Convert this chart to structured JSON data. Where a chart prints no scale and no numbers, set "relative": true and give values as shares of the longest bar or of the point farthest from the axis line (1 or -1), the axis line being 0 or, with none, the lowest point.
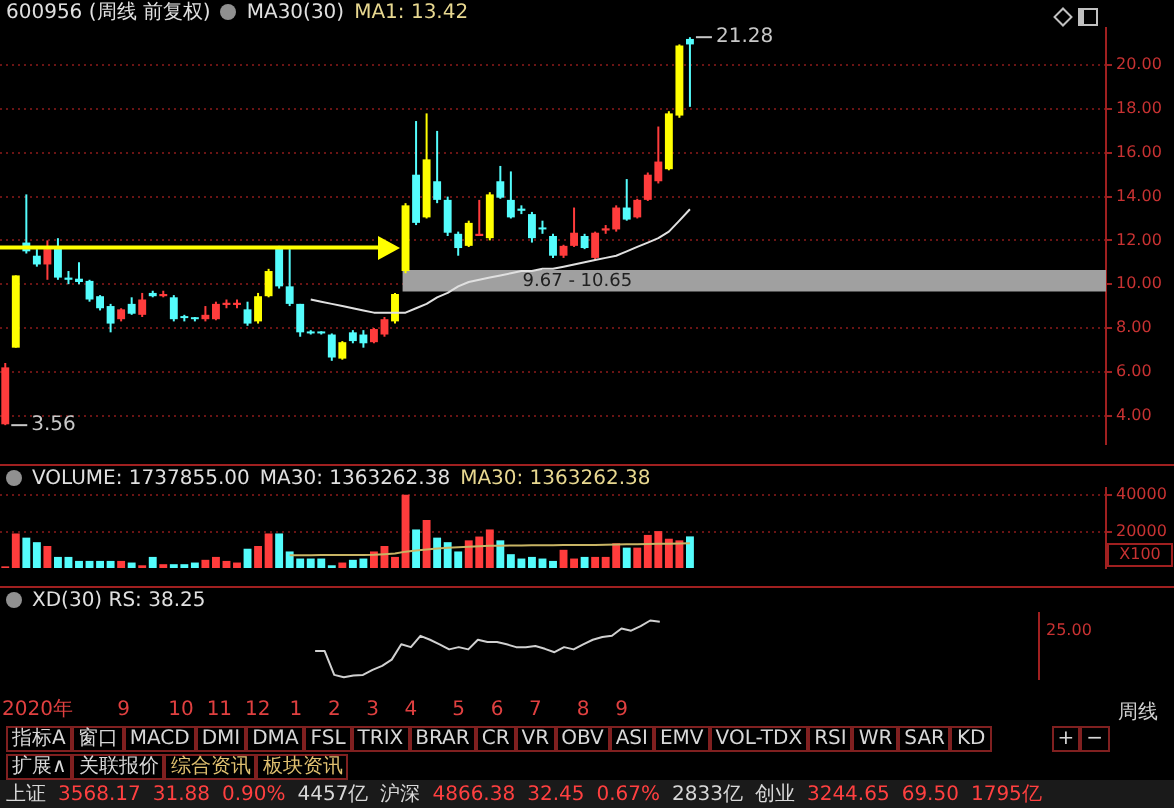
{
  "chart_data": [
    {
      "type": "candlestick",
      "title": "600956 (周线 前复权)",
      "annotations": [
        "MA30(30)",
        "MA1: 13.42",
        "3.56",
        "21.28"
      ],
      "categories": [
        null,
        null,
        null,
        null,
        null,
        null,
        null,
        null,
        null,
        null,
        null,
        null,
        null,
        null,
        null,
        null,
        null,
        null,
        null,
        null,
        null,
        null,
        null,
        null,
        null,
        null,
        null,
        null,
        null,
        null,
        null,
        null,
        null,
        null,
        null,
        null,
        null,
        null,
        null,
        null,
        null,
        null,
        null,
        null,
        null,
        null,
        null,
        null,
        null,
        null,
        null,
        null,
        null,
        null,
        null,
        null,
        null,
        null,
        null,
        null,
        null,
        null,
        null,
        null,
        null,
        null,
        null,
        null,
        null,
        null,
        null,
        null,
        null,
        null,
        null,
        null,
        null,
        null,
        null,
        null,
        null,
        null,
        null,
        null,
        null,
        null,
        null,
        null,
        null,
        null,
        null,
        null,
        null,
        null,
        null,
        null,
        null,
        null,
        null,
        null,
        null,
        null,
        null,
        null,
        null
      ],
      "ohlc": [
        [
          3.6,
          6.4,
          3.56,
          6.2
        ],
        [
          7.1,
          10.4,
          7.1,
          10.4
        ],
        [
          11.9,
          14.1,
          11.4,
          11.5
        ],
        [
          11.3,
          11.6,
          10.8,
          10.9
        ],
        [
          10.9,
          12.0,
          10.2,
          11.6
        ],
        [
          11.65,
          12.1,
          10.2,
          10.3
        ],
        [
          10.3,
          10.6,
          10.0,
          10.2
        ],
        [
          10.25,
          11.0,
          10.0,
          10.1
        ],
        [
          10.15,
          10.2,
          9.2,
          9.3
        ],
        [
          9.45,
          9.5,
          8.8,
          8.9
        ],
        [
          9.0,
          9.1,
          7.8,
          8.2
        ],
        [
          8.4,
          8.9,
          8.3,
          8.85
        ],
        [
          9.1,
          9.4,
          8.6,
          8.65
        ],
        [
          8.6,
          9.6,
          8.5,
          9.3
        ],
        [
          9.6,
          9.7,
          9.4,
          9.45
        ],
        [
          9.45,
          9.7,
          9.4,
          9.55
        ],
        [
          9.4,
          9.5,
          8.3,
          8.4
        ],
        [
          8.5,
          8.6,
          8.3,
          8.45
        ],
        [
          8.45,
          8.5,
          8.3,
          8.4
        ],
        [
          8.4,
          9.0,
          8.3,
          8.6
        ],
        [
          8.4,
          9.2,
          8.35,
          9.1
        ],
        [
          9.05,
          9.3,
          8.9,
          9.15
        ],
        [
          9.05,
          9.3,
          8.9,
          9.15
        ],
        [
          8.85,
          9.2,
          8.1,
          8.2
        ],
        [
          8.3,
          9.6,
          8.2,
          9.45
        ],
        [
          9.45,
          10.7,
          9.4,
          10.6
        ],
        [
          11.65,
          11.75,
          9.8,
          9.9
        ],
        [
          9.9,
          11.6,
          9.0,
          9.1
        ],
        [
          9.1,
          9.1,
          7.6,
          7.8
        ],
        [
          7.8,
          7.9,
          7.7,
          7.75
        ],
        [
          7.8,
          7.85,
          7.7,
          7.75
        ],
        [
          7.7,
          7.75,
          6.5,
          6.65
        ],
        [
          6.6,
          7.4,
          6.55,
          7.35
        ],
        [
          7.8,
          7.9,
          7.3,
          7.4
        ],
        [
          7.7,
          7.9,
          7.1,
          7.3
        ],
        [
          7.35,
          8.0,
          7.3,
          7.95
        ],
        [
          7.7,
          8.5,
          7.6,
          8.4
        ],
        [
          8.3,
          9.6,
          8.2,
          9.55
        ],
        [
          10.6,
          13.7,
          10.5,
          13.6
        ],
        [
          15.0,
          17.45,
          12.7,
          12.8
        ],
        [
          13.05,
          17.8,
          13.0,
          15.7
        ],
        [
          14.7,
          17.0,
          13.7,
          13.85
        ],
        [
          13.85,
          14.0,
          12.2,
          12.35
        ],
        [
          12.3,
          12.4,
          11.3,
          11.65
        ],
        [
          11.75,
          12.9,
          11.7,
          12.8
        ],
        [
          12.2,
          13.85,
          12.2,
          12.3
        ],
        [
          12.1,
          14.2,
          12.0,
          14.1
        ],
        [
          14.7,
          15.4,
          13.9,
          13.95
        ],
        [
          13.85,
          15.15,
          13.0,
          13.05
        ],
        [
          13.45,
          13.6,
          13.2,
          13.35
        ],
        [
          13.2,
          13.3,
          11.9,
          12.1
        ],
        [
          12.55,
          12.9,
          12.3,
          12.5
        ],
        [
          12.2,
          12.3,
          11.2,
          11.3
        ],
        [
          11.3,
          11.8,
          11.2,
          11.75
        ],
        [
          11.75,
          13.5,
          11.7,
          12.35
        ],
        [
          12.2,
          12.3,
          11.6,
          11.65
        ],
        [
          11.2,
          12.4,
          11.1,
          12.35
        ],
        [
          12.45,
          12.7,
          12.3,
          12.55
        ],
        [
          12.5,
          13.6,
          12.4,
          13.5
        ],
        [
          13.5,
          14.8,
          12.9,
          12.95
        ],
        [
          13.05,
          13.9,
          13.0,
          13.85
        ],
        [
          13.85,
          15.1,
          13.8,
          15.0
        ],
        [
          14.7,
          17.2,
          14.6,
          15.6
        ],
        [
          15.25,
          17.9,
          15.2,
          17.8
        ],
        [
          17.7,
          20.95,
          17.6,
          20.9
        ],
        [
          21.2,
          21.28,
          18.1,
          20.95
        ],
        null,
        null,
        null,
        null,
        null,
        null,
        null,
        null,
        null,
        null,
        null,
        null,
        null,
        null,
        null,
        null,
        null,
        null,
        null,
        null,
        null,
        null,
        null,
        null,
        null,
        null,
        null,
        null,
        null,
        null,
        null,
        null,
        null,
        null,
        null,
        null,
        null,
        null,
        null
      ],
      "colors": [
        "#ff3c3c",
        "#ffff00",
        "#54fcfc",
        "#54fcfc",
        "#ff3c3c",
        "#54fcfc",
        "#54fcfc",
        "#54fcfc",
        "#54fcfc",
        "#54fcfc",
        "#54fcfc",
        "#ff3c3c",
        "#54fcfc",
        "#ff3c3c",
        "#54fcfc",
        "#ff3c3c",
        "#54fcfc",
        "#54fcfc",
        "#54fcfc",
        "#ff3c3c",
        "#ff3c3c",
        "#ff3c3c",
        "#ff3c3c",
        "#54fcfc",
        "#ffff00",
        "#ffff00",
        "#54fcfc",
        "#54fcfc",
        "#54fcfc",
        "#54fcfc",
        "#54fcfc",
        "#54fcfc",
        "#ffff00",
        "#54fcfc",
        "#54fcfc",
        "#ff3c3c",
        "#ff3c3c",
        "#ffff00",
        "#ffff00",
        "#54fcfc",
        "#ffff00",
        "#54fcfc",
        "#54fcfc",
        "#54fcfc",
        "#ffff00",
        "#ff3c3c",
        "#ffff00",
        "#54fcfc",
        "#54fcfc",
        "#54fcfc",
        "#54fcfc",
        "#54fcfc",
        "#54fcfc",
        "#ff3c3c",
        "#ff3c3c",
        "#54fcfc",
        "#ff3c3c",
        "#ff3c3c",
        "#ff3c3c",
        "#54fcfc",
        "#ff3c3c",
        "#ff3c3c",
        "#ff3c3c",
        "#ffff00",
        "#ffff00",
        "#54fcfc",
        null,
        null,
        null,
        null,
        null,
        null,
        null,
        null,
        null,
        null,
        null,
        null,
        null,
        null,
        null,
        null,
        null,
        null,
        null,
        null,
        null,
        null,
        null,
        null,
        null,
        null,
        null,
        null,
        null,
        null,
        null,
        null,
        null,
        null,
        null,
        null,
        null,
        null,
        null
      ],
      "series": [
        {
          "type": "line",
          "color": "#e0e0e0",
          "values": [
            null,
            null,
            null,
            null,
            null,
            null,
            null,
            null,
            null,
            null,
            null,
            null,
            null,
            null,
            null,
            null,
            null,
            null,
            null,
            null,
            null,
            null,
            null,
            null,
            null,
            null,
            null,
            null,
            null,
            9.3,
            9.2,
            9.1,
            9.0,
            8.9,
            8.8,
            8.7,
            8.7,
            8.7,
            8.7,
            8.9,
            9.1,
            9.4,
            9.6,
            9.9,
            10.1,
            10.2,
            10.3,
            10.4,
            10.5,
            10.6,
            10.6,
            10.7,
            10.7,
            10.8,
            10.9,
            11.0,
            11.1,
            11.2,
            11.3,
            11.5,
            11.7,
            11.9,
            12.1,
            12.4,
            12.9,
            13.42,
            null,
            null,
            null,
            null,
            null,
            null,
            null,
            null,
            null,
            null,
            null,
            null,
            null,
            null,
            null,
            null,
            null,
            null,
            null,
            null,
            null,
            null,
            null,
            null,
            null,
            null,
            null,
            null,
            null,
            null,
            null,
            null,
            null,
            null,
            null,
            null,
            null,
            null,
            null
          ]
        }
      ],
      "bands": [
        {
          "axis": "y",
          "from": 9.67,
          "to": 10.65,
          "label": "9.67 - 10.65",
          "color": "#a0a0a0"
        }
      ],
      "ref_lines": [
        {
          "axis": "y",
          "value": 11.67,
          "color": "#ffff00"
        }
      ],
      "ylim": [
        2.7,
        21.7
      ],
      "yticks": [
        {
          "value": 4,
          "label": "4.00"
        },
        {
          "value": 6,
          "label": "6.00"
        },
        {
          "value": 8,
          "label": "8.00"
        },
        {
          "value": 10,
          "label": "10.00"
        },
        {
          "value": 12,
          "label": "12.00"
        },
        {
          "value": 14,
          "label": "14.00"
        },
        {
          "value": 16,
          "label": "16.00"
        },
        {
          "value": 18,
          "label": "18.00"
        },
        {
          "value": 20,
          "label": "20.00"
        }
      ],
      "grid": "y",
      "tick_labels": "y"
    },
    {
      "type": "bar",
      "annotations": [
        "VOLUME: 1737855.00",
        "MA30: 1363262.38",
        "MA30: 1363262.38"
      ],
      "ylabel": "X100",
      "categories": [
        null,
        null,
        null,
        null,
        null,
        null,
        null,
        null,
        null,
        null,
        null,
        null,
        null,
        null,
        null,
        null,
        null,
        null,
        null,
        null,
        null,
        null,
        null,
        null,
        null,
        null,
        null,
        null,
        null,
        null,
        null,
        null,
        null,
        null,
        null,
        null,
        null,
        null,
        null,
        null,
        null,
        null,
        null,
        null,
        null,
        null,
        null,
        null,
        null,
        null,
        null,
        null,
        null,
        null,
        null,
        null,
        null,
        null,
        null,
        null,
        null,
        null,
        null,
        null,
        null,
        null,
        null,
        null,
        null,
        null,
        null,
        null,
        null,
        null,
        null,
        null,
        null,
        null,
        null,
        null,
        null,
        null,
        null,
        null,
        null,
        null,
        null,
        null,
        null,
        null,
        null,
        null,
        null,
        null,
        null,
        null,
        null,
        null,
        null,
        null,
        null,
        null,
        null,
        null,
        null
      ],
      "values": [
        900,
        19000,
        16700,
        14200,
        12100,
        6100,
        6100,
        3900,
        3900,
        3900,
        3900,
        3900,
        3000,
        1500,
        6100,
        2100,
        2100,
        2100,
        3000,
        4500,
        6100,
        3900,
        3000,
        10600,
        12100,
        19000,
        19000,
        9100,
        5200,
        5200,
        5200,
        1500,
        3000,
        4500,
        5200,
        9100,
        12100,
        6100,
        40300,
        21200,
        26400,
        16700,
        14200,
        9100,
        15200,
        17300,
        21200,
        15200,
        7600,
        5200,
        6100,
        5200,
        3900,
        10000,
        5200,
        6100,
        6100,
        6100,
        13600,
        11200,
        11200,
        18200,
        20300,
        16100,
        15200,
        17378.55,
        null,
        null,
        null,
        null,
        null,
        null,
        null,
        null,
        null,
        null,
        null,
        null,
        null,
        null,
        null,
        null,
        null,
        null,
        null,
        null,
        null,
        null,
        null,
        null,
        null,
        null,
        null,
        null,
        null,
        null,
        null,
        null,
        null,
        null,
        null,
        null,
        null,
        null,
        null
      ],
      "colors": [
        "#ff3c3c",
        "#ff3c3c",
        "#54fcfc",
        "#54fcfc",
        "#ff3c3c",
        "#54fcfc",
        "#54fcfc",
        "#54fcfc",
        "#54fcfc",
        "#54fcfc",
        "#54fcfc",
        "#ff3c3c",
        "#54fcfc",
        "#ff3c3c",
        "#54fcfc",
        "#ff3c3c",
        "#54fcfc",
        "#54fcfc",
        "#54fcfc",
        "#ff3c3c",
        "#ff3c3c",
        "#ff3c3c",
        "#ff3c3c",
        "#54fcfc",
        "#ff3c3c",
        "#ff3c3c",
        "#54fcfc",
        "#54fcfc",
        "#54fcfc",
        "#54fcfc",
        "#54fcfc",
        "#54fcfc",
        "#ff3c3c",
        "#54fcfc",
        "#54fcfc",
        "#ff3c3c",
        "#ff3c3c",
        "#ff3c3c",
        "#ff3c3c",
        "#54fcfc",
        "#ff3c3c",
        "#54fcfc",
        "#54fcfc",
        "#54fcfc",
        "#ff3c3c",
        "#ff3c3c",
        "#ff3c3c",
        "#54fcfc",
        "#54fcfc",
        "#54fcfc",
        "#54fcfc",
        "#54fcfc",
        "#54fcfc",
        "#ff3c3c",
        "#ff3c3c",
        "#54fcfc",
        "#ff3c3c",
        "#ff3c3c",
        "#ff3c3c",
        "#54fcfc",
        "#ff3c3c",
        "#ff3c3c",
        "#ff3c3c",
        "#ff3c3c",
        "#ff3c3c",
        "#54fcfc",
        null,
        null,
        null,
        null,
        null,
        null,
        null,
        null,
        null,
        null,
        null,
        null,
        null,
        null,
        null,
        null,
        null,
        null,
        null,
        null,
        null,
        null,
        null,
        null,
        null,
        null,
        null,
        null,
        null,
        null,
        null,
        null,
        null,
        null,
        null,
        null,
        null,
        null,
        null
      ],
      "series": [
        {
          "type": "line",
          "color": "#c8b464",
          "values": [
            null,
            null,
            null,
            null,
            null,
            null,
            null,
            null,
            null,
            null,
            null,
            null,
            null,
            null,
            null,
            null,
            null,
            null,
            null,
            null,
            null,
            null,
            null,
            null,
            null,
            null,
            null,
            7000,
            7000,
            7000,
            7100,
            7100,
            7100,
            7200,
            7200,
            7300,
            7600,
            8000,
            9000,
            9600,
            10200,
            10700,
            11100,
            11400,
            11700,
            12000,
            12200,
            12300,
            12400,
            12400,
            12500,
            12500,
            12500,
            12600,
            12600,
            12600,
            12700,
            12800,
            12900,
            13000,
            13100,
            13200,
            13300,
            13400,
            13500,
            13632.62,
            null,
            null,
            null,
            null,
            null,
            null,
            null,
            null,
            null,
            null,
            null,
            null,
            null,
            null,
            null,
            null,
            null,
            null,
            null,
            null,
            null,
            null,
            null,
            null,
            null,
            null,
            null,
            null,
            null,
            null,
            null,
            null,
            null,
            null,
            null,
            null,
            null,
            null,
            null
          ]
        }
      ],
      "ylim": [
        0,
        44000
      ],
      "yticks": [
        20000,
        40000
      ],
      "grid": "y",
      "tick_labels": "y"
    },
    {
      "type": "line",
      "title": "XD(30) RS: 38.25",
      "relative": true,
      "annotations": [
        "25.00"
      ],
      "categories": [
        "2020年",
        null,
        null,
        null,
        null,
        null,
        null,
        null,
        null,
        "9",
        null,
        null,
        null,
        null,
        null,
        "10",
        null,
        null,
        null,
        "11",
        null,
        null,
        null,
        "12",
        null,
        null,
        null,
        "1",
        null,
        null,
        null,
        "2",
        null,
        null,
        null,
        "3",
        null,
        null,
        null,
        "4",
        null,
        null,
        null,
        null,
        "5",
        null,
        null,
        null,
        "6",
        null,
        null,
        null,
        "7",
        null,
        null,
        null,
        null,
        "8",
        null,
        null,
        null,
        "9",
        null,
        null,
        null,
        null,
        null,
        null,
        null,
        null,
        null,
        null,
        null,
        null,
        null,
        null,
        null,
        null,
        null,
        null,
        null,
        null,
        null,
        null,
        null,
        null,
        null,
        null,
        null,
        null,
        null,
        null,
        null,
        null,
        null,
        null,
        null,
        null,
        null,
        null,
        null,
        null,
        null,
        null,
        null
      ],
      "series": [
        {
          "color": "#d0d0d0",
          "values": [
            null,
            null,
            null,
            null,
            null,
            null,
            null,
            null,
            null,
            null,
            null,
            null,
            null,
            null,
            null,
            null,
            null,
            null,
            null,
            null,
            null,
            null,
            null,
            null,
            null,
            null,
            null,
            null,
            null,
            0.46,
            0.46,
            0.04,
            0,
            0.03,
            0.04,
            0.13,
            0.2,
            0.31,
            0.58,
            0.53,
            0.73,
            0.66,
            0.58,
            0.49,
            0.53,
            0.49,
            0.66,
            0.62,
            0.62,
            0.58,
            0.53,
            0.53,
            0.55,
            0.5,
            0.44,
            0.53,
            0.49,
            0.58,
            0.66,
            0.71,
            0.73,
            0.86,
            0.82,
            0.9,
            1,
            0.98,
            null,
            null,
            null,
            null,
            null,
            null,
            null,
            null,
            null,
            null,
            null,
            null,
            null,
            null,
            null,
            null,
            null,
            null,
            null,
            null,
            null,
            null,
            null,
            null,
            null,
            null,
            null,
            null,
            null,
            null,
            null,
            null,
            null,
            null,
            null,
            null,
            null,
            null,
            null
          ]
        }
      ]
    },
    {
      "type": "other",
      "title": "周线",
      "annotations": [
        "指标A",
        "窗口",
        "MACD",
        "DMI",
        "DMA",
        "FSL",
        "TRIX",
        "BRAR",
        "CR",
        "VR",
        "OBV",
        "ASI",
        "EMV",
        "VOL-TDX",
        "RSI",
        "WR",
        "SAR",
        "KD",
        "+",
        "−"
      ]
    },
    {
      "type": "other",
      "annotations": [
        "扩展∧",
        "关联报价",
        "综合资讯",
        "板块资讯"
      ]
    },
    {
      "type": "other",
      "annotations": [
        "上证",
        "3568.17",
        "31.88",
        "0.90%",
        "4457亿",
        "沪深",
        "4866.38",
        "32.45",
        "0.67%",
        "2833亿",
        "创业",
        "3244.65",
        "69.50",
        "1795亿"
      ]
    }
  ]
}
